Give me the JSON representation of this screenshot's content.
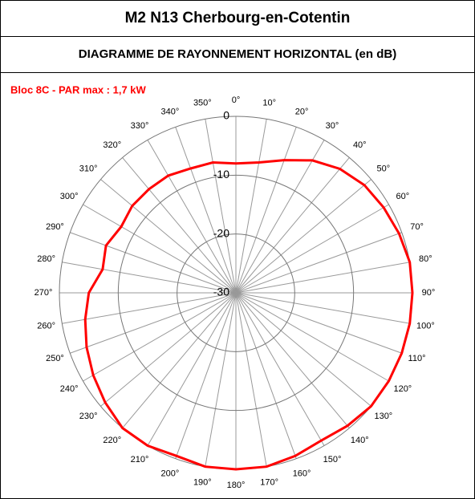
{
  "chart_data": {
    "type": "polar",
    "title": "M2 N13 Cherbourg-en-Cotentin",
    "subtitle": "DIAGRAMME DE RAYONNEMENT HORIZONTAL  (en dB)",
    "categories": [
      "0°",
      "10°",
      "20°",
      "30°",
      "40°",
      "50°",
      "60°",
      "70°",
      "80°",
      "90°",
      "100°",
      "110°",
      "120°",
      "130°",
      "140°",
      "150°",
      "160°",
      "170°",
      "180°",
      "190°",
      "200°",
      "210°",
      "220°",
      "230°",
      "240°",
      "250°",
      "260°",
      "270°",
      "280°",
      "290°",
      "300°",
      "310°",
      "320°",
      "330°",
      "340°",
      "350°"
    ],
    "series": [
      {
        "name": "Bloc 8C - PAR max : 1,7 kW",
        "color": "#ff0000",
        "values": [
          -8,
          -7.5,
          -6,
          -4,
          -2.5,
          -1.5,
          -1,
          -0.5,
          0,
          0,
          0,
          0,
          0,
          0,
          -0.5,
          -1,
          -0.5,
          0,
          0,
          0,
          -0.5,
          0,
          0,
          -1,
          -2,
          -3,
          -4,
          -5,
          -7,
          -6.5,
          -7.5,
          -7,
          -7,
          -7,
          -7.5,
          -7.5
        ]
      }
    ],
    "rlim": [
      -30,
      0
    ],
    "rticks": [
      0,
      -10,
      -20,
      -30
    ],
    "grid": true
  }
}
